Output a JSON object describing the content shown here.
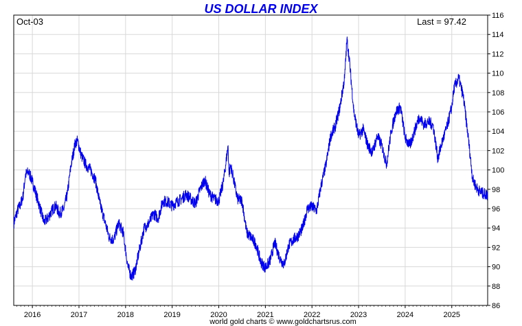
{
  "chart_data": {
    "type": "line",
    "title": "US DOLLAR INDEX",
    "date_label": "Oct-03",
    "last_label": "Last = 97.42",
    "footer": "world gold charts © www.goldchartsrus.com",
    "ylim": [
      86,
      116
    ],
    "yticks": [
      86,
      88,
      90,
      92,
      94,
      96,
      98,
      100,
      102,
      104,
      106,
      108,
      110,
      112,
      114,
      116
    ],
    "xlim": [
      2015.6,
      2025.77
    ],
    "xticks": [
      2016,
      2017,
      2018,
      2019,
      2020,
      2021,
      2022,
      2023,
      2024,
      2025
    ],
    "grid": true,
    "colors": {
      "line": "#0000ee",
      "title": "#0000ee",
      "grid": "#d8d8d8"
    },
    "x": [
      2015.6,
      2015.68,
      2015.75,
      2015.8,
      2015.85,
      2015.92,
      2016.0,
      2016.08,
      2016.15,
      2016.25,
      2016.33,
      2016.42,
      2016.5,
      2016.58,
      2016.67,
      2016.75,
      2016.83,
      2016.92,
      2016.97,
      2017.05,
      2017.15,
      2017.25,
      2017.35,
      2017.45,
      2017.55,
      2017.65,
      2017.75,
      2017.85,
      2017.95,
      2018.05,
      2018.12,
      2018.2,
      2018.3,
      2018.4,
      2018.5,
      2018.6,
      2018.7,
      2018.8,
      2018.9,
      2019.0,
      2019.1,
      2019.2,
      2019.3,
      2019.4,
      2019.5,
      2019.6,
      2019.7,
      2019.8,
      2019.9,
      2020.0,
      2020.1,
      2020.2,
      2020.22,
      2020.25,
      2020.3,
      2020.4,
      2020.5,
      2020.6,
      2020.7,
      2020.8,
      2020.9,
      2021.0,
      2021.1,
      2021.2,
      2021.3,
      2021.4,
      2021.5,
      2021.6,
      2021.7,
      2021.8,
      2021.9,
      2022.0,
      2022.1,
      2022.2,
      2022.3,
      2022.4,
      2022.5,
      2022.6,
      2022.7,
      2022.75,
      2022.8,
      2022.9,
      2023.0,
      2023.1,
      2023.2,
      2023.3,
      2023.4,
      2023.5,
      2023.6,
      2023.7,
      2023.8,
      2023.9,
      2024.0,
      2024.1,
      2024.2,
      2024.3,
      2024.4,
      2024.5,
      2024.6,
      2024.7,
      2024.8,
      2024.9,
      2025.0,
      2025.05,
      2025.15,
      2025.25,
      2025.35,
      2025.45,
      2025.55,
      2025.65,
      2025.77
    ],
    "y": [
      94.5,
      95.8,
      96.5,
      97.3,
      99.5,
      99.8,
      98.8,
      97.5,
      96.3,
      94.6,
      95.0,
      95.8,
      96.3,
      95.5,
      95.9,
      97.5,
      100.5,
      102.8,
      103.0,
      101.5,
      100.5,
      100.0,
      99.0,
      96.5,
      94.8,
      93.0,
      92.8,
      94.5,
      93.5,
      90.0,
      89.0,
      89.5,
      91.8,
      94.0,
      94.5,
      95.5,
      95.0,
      96.8,
      96.7,
      96.3,
      96.7,
      97.0,
      97.5,
      97.0,
      96.5,
      98.0,
      99.0,
      97.5,
      97.0,
      96.8,
      98.8,
      102.5,
      99.5,
      100.5,
      99.5,
      97.0,
      96.8,
      93.5,
      93.0,
      92.3,
      90.5,
      89.9,
      90.6,
      92.5,
      91.0,
      90.2,
      92.2,
      92.8,
      93.2,
      94.0,
      96.0,
      96.2,
      95.8,
      98.5,
      100.5,
      103.5,
      104.5,
      106.5,
      109.5,
      113.5,
      111.5,
      106.0,
      103.5,
      104.2,
      102.5,
      101.8,
      103.5,
      102.5,
      100.6,
      104.0,
      106.0,
      106.5,
      103.3,
      102.5,
      104.0,
      105.5,
      104.7,
      105.0,
      104.6,
      101.2,
      103.0,
      104.5,
      106.5,
      108.5,
      109.5,
      107.5,
      103.5,
      99.0,
      98.0,
      97.6,
      97.42
    ]
  }
}
